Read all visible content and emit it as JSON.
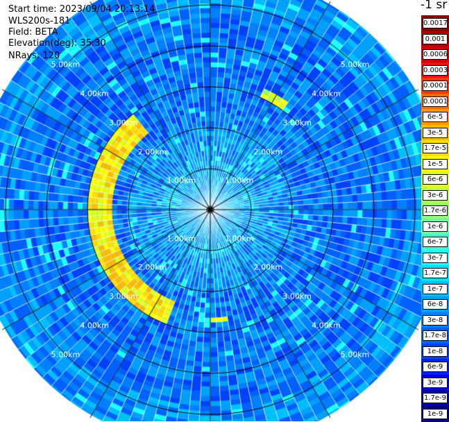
{
  "info": {
    "start_time": "Start time: 2023/09/04 20:13:14",
    "instrument": "WLS200s-181",
    "field": "Field: BETA",
    "elevation": "Elevation(deg): 35.30",
    "nrays": "NRays: 120"
  },
  "colorbar": {
    "title": "-1 sr",
    "labels": [
      "0.0017",
      "0.001",
      "0.0006",
      "0.0003",
      "0.00017",
      "0.0001",
      "6e-5",
      "3e-5",
      "1.7e-5",
      "1e-5",
      "6e-6",
      "3e-6",
      "1.7e-6",
      "1e-6",
      "6e-7",
      "3e-7",
      "1.7e-7",
      "1e-7",
      "6e-8",
      "3e-8",
      "1.7e-8",
      "1e-8",
      "6e-9",
      "3e-9",
      "1.7e-9",
      "1e-9"
    ],
    "colors": [
      "#8b0000",
      "#b00000",
      "#d00000",
      "#ee1010",
      "#ff3a00",
      "#ff6a00",
      "#ff9900",
      "#ffbb00",
      "#ffdd00",
      "#ffff00",
      "#e0ff20",
      "#c0ff40",
      "#90ff70",
      "#70ffa0",
      "#40ffd0",
      "#20ffff",
      "#00e0ff",
      "#00c0ff",
      "#00a0ff",
      "#0080ff",
      "#0060ff",
      "#0040ff",
      "#0020ee",
      "#0000dd",
      "#0000aa",
      "#000080"
    ]
  },
  "chart_data": {
    "type": "heatmap",
    "projection": "polar PPI",
    "field": "BETA",
    "units": "-1 sr",
    "nrays": 120,
    "range_rings_km": [
      1.0,
      2.0,
      3.0,
      4.0,
      5.0
    ],
    "ring_labels": {
      "r1": "1.00km",
      "r2": "2.00km",
      "r3": "3.00km",
      "r4": "4.00km",
      "r5": "5.00km"
    },
    "max_range_km": 5.8,
    "background_level": "3e-8",
    "features": [
      {
        "description": "high backscatter arc",
        "range_km": [
          2.4,
          3.0
        ],
        "azimuth_deg": [
          200,
          320
        ],
        "peak": "1.7e-5"
      },
      {
        "description": "isolated high cell",
        "range_km": [
          3.0,
          3.2
        ],
        "azimuth_deg": [
          25,
          35
        ],
        "peak": "3e-6"
      },
      {
        "description": "isolated high cell",
        "range_km": [
          2.6,
          2.8
        ],
        "azimuth_deg": [
          170,
          180
        ],
        "peak": "6e-6"
      }
    ]
  }
}
